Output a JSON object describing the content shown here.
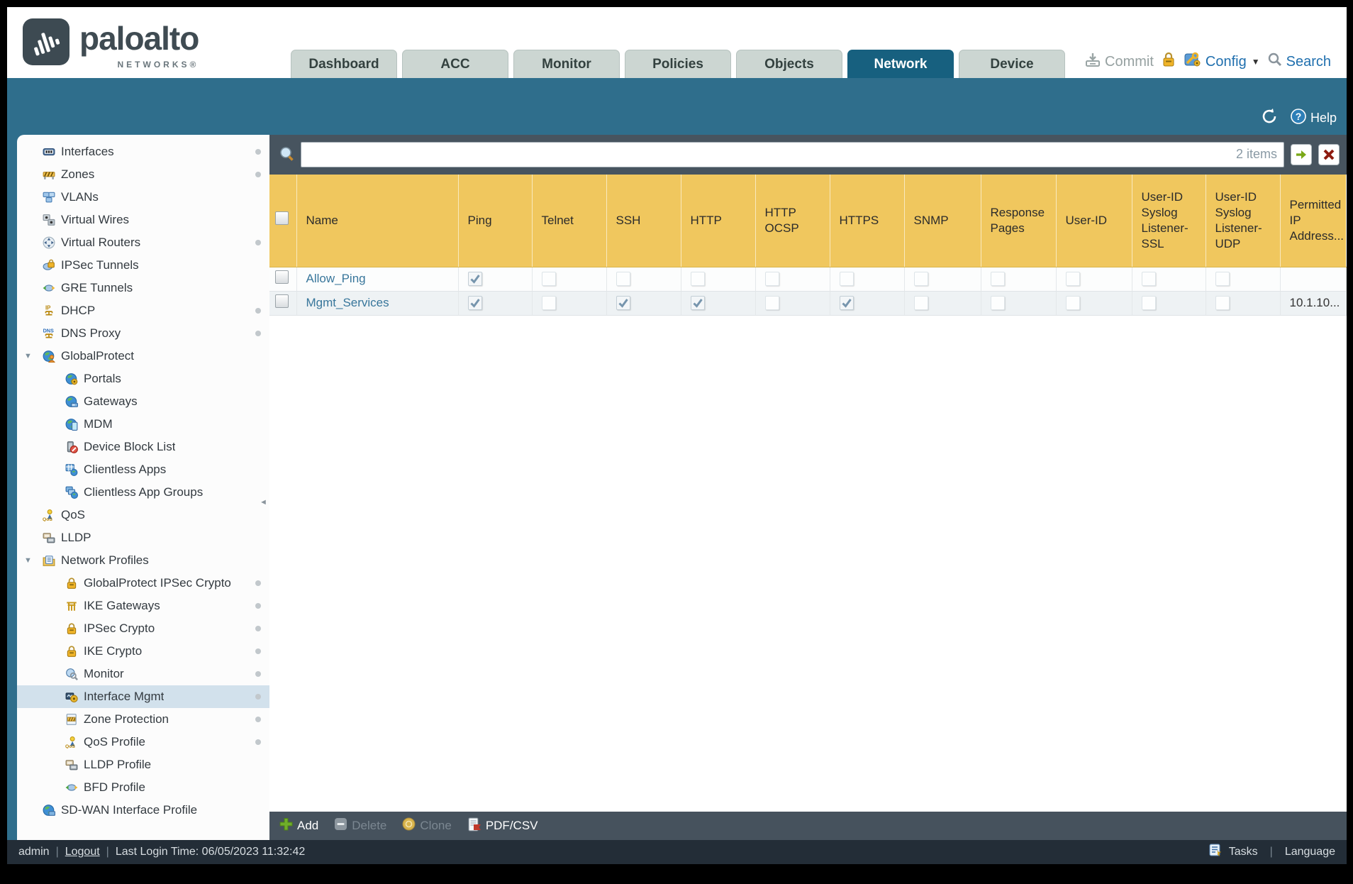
{
  "header": {
    "logo_brand": "paloalto",
    "logo_sub": "NETWORKS®",
    "tabs": [
      {
        "label": "Dashboard",
        "active": false
      },
      {
        "label": "ACC",
        "active": false
      },
      {
        "label": "Monitor",
        "active": false
      },
      {
        "label": "Policies",
        "active": false
      },
      {
        "label": "Objects",
        "active": false
      },
      {
        "label": "Network",
        "active": true
      },
      {
        "label": "Device",
        "active": false
      }
    ],
    "commit_label": "Commit",
    "config_label": "Config",
    "search_label": "Search"
  },
  "band": {
    "help_label": "Help"
  },
  "sidebar": {
    "items": [
      {
        "label": "Interfaces",
        "icon": "interfaces",
        "level": 1,
        "dot": true
      },
      {
        "label": "Zones",
        "icon": "zones",
        "level": 1,
        "dot": true
      },
      {
        "label": "VLANs",
        "icon": "vlans",
        "level": 1,
        "dot": false
      },
      {
        "label": "Virtual Wires",
        "icon": "virtual-wires",
        "level": 1,
        "dot": false
      },
      {
        "label": "Virtual Routers",
        "icon": "virtual-routers",
        "level": 1,
        "dot": true
      },
      {
        "label": "IPSec Tunnels",
        "icon": "ipsec-tunnels",
        "level": 1,
        "dot": false
      },
      {
        "label": "GRE Tunnels",
        "icon": "gre-tunnels",
        "level": 1,
        "dot": false
      },
      {
        "label": "DHCP",
        "icon": "dhcp",
        "level": 1,
        "dot": true
      },
      {
        "label": "DNS Proxy",
        "icon": "dns-proxy",
        "level": 1,
        "dot": true
      },
      {
        "label": "GlobalProtect",
        "icon": "globalprotect",
        "level": 1,
        "dot": false,
        "expanded": true
      },
      {
        "label": "Portals",
        "icon": "portals",
        "level": 2,
        "dot": false
      },
      {
        "label": "Gateways",
        "icon": "gateways",
        "level": 2,
        "dot": false
      },
      {
        "label": "MDM",
        "icon": "mdm",
        "level": 2,
        "dot": false
      },
      {
        "label": "Device Block List",
        "icon": "device-block-list",
        "level": 2,
        "dot": false
      },
      {
        "label": "Clientless Apps",
        "icon": "clientless-apps",
        "level": 2,
        "dot": false
      },
      {
        "label": "Clientless App Groups",
        "icon": "clientless-app-groups",
        "level": 2,
        "dot": false
      },
      {
        "label": "QoS",
        "icon": "qos",
        "level": 1,
        "dot": false
      },
      {
        "label": "LLDP",
        "icon": "lldp",
        "level": 1,
        "dot": false
      },
      {
        "label": "Network Profiles",
        "icon": "network-profiles",
        "level": 1,
        "dot": false,
        "expanded": true
      },
      {
        "label": "GlobalProtect IPSec Crypto",
        "icon": "lock",
        "level": 2,
        "dot": true
      },
      {
        "label": "IKE Gateways",
        "icon": "ike-gateways",
        "level": 2,
        "dot": true
      },
      {
        "label": "IPSec Crypto",
        "icon": "lock",
        "level": 2,
        "dot": true
      },
      {
        "label": "IKE Crypto",
        "icon": "lock",
        "level": 2,
        "dot": true
      },
      {
        "label": "Monitor",
        "icon": "monitor",
        "level": 2,
        "dot": true
      },
      {
        "label": "Interface Mgmt",
        "icon": "interface-mgmt",
        "level": 2,
        "dot": true,
        "selected": true
      },
      {
        "label": "Zone Protection",
        "icon": "zone-protection",
        "level": 2,
        "dot": true
      },
      {
        "label": "QoS Profile",
        "icon": "qos",
        "level": 2,
        "dot": true
      },
      {
        "label": "LLDP Profile",
        "icon": "lldp",
        "level": 2,
        "dot": false
      },
      {
        "label": "BFD Profile",
        "icon": "bfd-profile",
        "level": 2,
        "dot": false
      },
      {
        "label": "SD-WAN Interface Profile",
        "icon": "sd-wan",
        "level": 1,
        "dot": false
      }
    ]
  },
  "content": {
    "search": {
      "value": "",
      "count": "2 items"
    },
    "table": {
      "columns": [
        {
          "key": "select",
          "label": ""
        },
        {
          "key": "name",
          "label": "Name"
        },
        {
          "key": "ping",
          "label": "Ping"
        },
        {
          "key": "telnet",
          "label": "Telnet"
        },
        {
          "key": "ssh",
          "label": "SSH"
        },
        {
          "key": "http",
          "label": "HTTP"
        },
        {
          "key": "http_ocsp",
          "label": "HTTP OCSP"
        },
        {
          "key": "https",
          "label": "HTTPS"
        },
        {
          "key": "snmp",
          "label": "SNMP"
        },
        {
          "key": "response_pages",
          "label": "Response Pages"
        },
        {
          "key": "user_id",
          "label": "User-ID"
        },
        {
          "key": "uid_syslog_ssl",
          "label": "User-ID Syslog Listener-SSL"
        },
        {
          "key": "uid_syslog_udp",
          "label": "User-ID Syslog Listener-UDP"
        },
        {
          "key": "permitted_ip",
          "label": "Permitted IP Address..."
        }
      ],
      "rows": [
        {
          "name": "Allow_Ping",
          "checks": {
            "ping": true,
            "telnet": false,
            "ssh": false,
            "http": false,
            "http_ocsp": false,
            "https": false,
            "snmp": false,
            "response_pages": false,
            "user_id": false,
            "uid_syslog_ssl": false,
            "uid_syslog_udp": false
          },
          "permitted_ip": ""
        },
        {
          "name": "Mgmt_Services",
          "checks": {
            "ping": true,
            "telnet": false,
            "ssh": true,
            "http": true,
            "http_ocsp": false,
            "https": true,
            "snmp": false,
            "response_pages": false,
            "user_id": false,
            "uid_syslog_ssl": false,
            "uid_syslog_udp": false
          },
          "permitted_ip": "10.1.10..."
        }
      ]
    },
    "toolbar": {
      "add_label": "Add",
      "delete_label": "Delete",
      "clone_label": "Clone",
      "pdfcsv_label": "PDF/CSV"
    }
  },
  "footer": {
    "user": "admin",
    "logout_label": "Logout",
    "last_login": "Last Login Time: 06/05/2023 11:32:42",
    "tasks_label": "Tasks",
    "language_label": "Language"
  }
}
